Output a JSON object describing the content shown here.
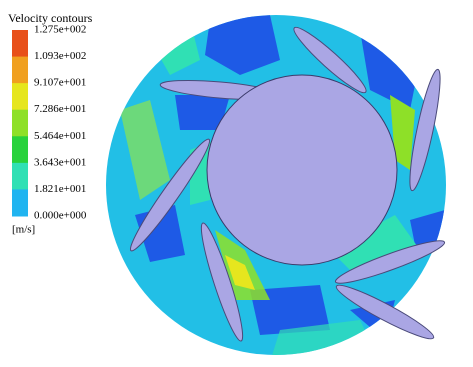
{
  "legend": {
    "title": "Velocity contours",
    "labels": [
      "1.275e+002",
      "1.093e+002",
      "9.107e+001",
      "7.286e+001",
      "5.464e+001",
      "3.643e+001",
      "1.821e+001",
      "0.000e+000"
    ],
    "colors": [
      "#e8501a",
      "#f0a020",
      "#e6e61e",
      "#8ee028",
      "#28d23c",
      "#30e0b4",
      "#20b4f0",
      "#1e5ae6"
    ],
    "unit": "[m/s]"
  }
}
